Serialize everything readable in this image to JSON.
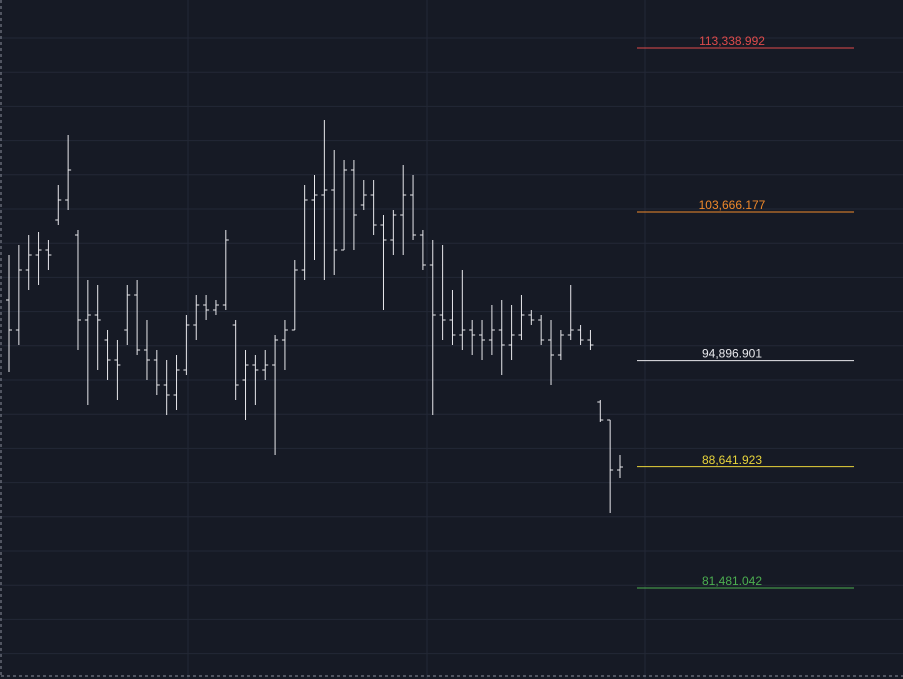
{
  "chart_data": {
    "type": "ohlc",
    "ylim": [
      76110,
      116171
    ],
    "bar_color": "#e8e8ec",
    "open": [
      98471,
      96701,
      100241,
      101126,
      101421,
      103191,
      104371,
      102306,
      97291,
      97586,
      96111,
      94931,
      96701,
      98766,
      95521,
      94931,
      93456,
      92866,
      94341,
      96996,
      98176,
      97881,
      98176,
      96996,
      93751,
      94636,
      94341,
      94636,
      96111,
      96701,
      100241,
      104371,
      104666,
      104961,
      101421,
      106141,
      104076,
      104666,
      102896,
      102011,
      103486,
      104666,
      102306,
      100536,
      97586,
      97291,
      96406,
      96701,
      96406,
      96111,
      96701,
      95816,
      96406,
      97586,
      97291,
      96111,
      95226,
      96406,
      96701,
      96111,
      92453,
      91391,
      88441
    ],
    "high": [
      101126,
      101716,
      102306,
      102483,
      102011,
      105256,
      108206,
      102601,
      99651,
      99356,
      96701,
      96111,
      99356,
      99651,
      97291,
      95521,
      94931,
      95226,
      97586,
      98766,
      98766,
      98471,
      102601,
      97291,
      95521,
      95226,
      95521,
      96406,
      97291,
      100831,
      105256,
      105846,
      109091,
      107321,
      106731,
      106731,
      105551,
      105551,
      103486,
      103781,
      106436,
      105846,
      102601,
      102011,
      101716,
      99061,
      100241,
      97291,
      97291,
      98176,
      98471,
      98176,
      98766,
      97881,
      97586,
      97291,
      96701,
      99356,
      96996,
      96701,
      92571,
      91391,
      89326
    ],
    "low": [
      94223,
      95816,
      99061,
      99356,
      100241,
      102896,
      103781,
      95521,
      92276,
      94341,
      93751,
      92571,
      95816,
      95226,
      93751,
      92866,
      91686,
      91981,
      94046,
      96111,
      97291,
      97586,
      97881,
      92571,
      91391,
      92276,
      93751,
      89326,
      94341,
      96701,
      99651,
      100831,
      99651,
      99946,
      101421,
      101421,
      103781,
      102306,
      97881,
      101126,
      101126,
      102011,
      100241,
      91686,
      96111,
      95816,
      95521,
      95226,
      94931,
      95226,
      94046,
      94931,
      96111,
      96996,
      95816,
      93456,
      94931,
      96111,
      95816,
      95521,
      91273,
      85904,
      87969
    ],
    "close": [
      96701,
      100241,
      101126,
      101421,
      101126,
      104371,
      106141,
      97291,
      97586,
      97291,
      94931,
      94636,
      98766,
      95521,
      94931,
      93456,
      92866,
      94341,
      96996,
      98176,
      97881,
      98176,
      102011,
      93456,
      94636,
      94341,
      94636,
      96111,
      96701,
      100241,
      104371,
      104666,
      104961,
      101421,
      106141,
      103486,
      104666,
      102896,
      102011,
      103486,
      104666,
      102306,
      100536,
      97586,
      97291,
      96406,
      96701,
      96406,
      96111,
      96701,
      95816,
      96406,
      97586,
      97291,
      96111,
      95226,
      96406,
      96701,
      96111,
      95816,
      91391,
      88441,
      88618
    ],
    "levels": [
      {
        "value": 113338.992,
        "label": "113,338.992",
        "color": "#e04b4b"
      },
      {
        "value": 103666.177,
        "label": "103,666.177",
        "color": "#f0892a"
      },
      {
        "value": 94896.901,
        "label": "94,896.901",
        "color": "#e8e8ec"
      },
      {
        "value": 88641.923,
        "label": "88,641.923",
        "color": "#e8d43a"
      },
      {
        "value": 81481.042,
        "label": "81,481.042",
        "color": "#4caf50"
      }
    ]
  }
}
